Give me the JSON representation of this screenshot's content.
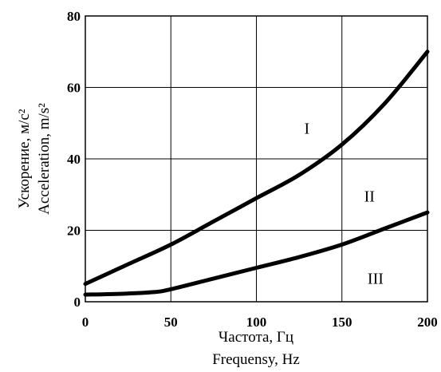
{
  "chart_data": {
    "type": "line",
    "xlabel_lines": [
      "Частота, Гц",
      "Frequensy, Hz"
    ],
    "ylabel_lines": [
      "Ускорение, м/с²",
      "Acceleration, m/s²"
    ],
    "xlim": [
      0,
      200
    ],
    "ylim": [
      0,
      80
    ],
    "x_ticks": [
      0,
      50,
      100,
      150,
      200
    ],
    "y_ticks": [
      0,
      20,
      40,
      60,
      80
    ],
    "grid": true,
    "annotations": [
      {
        "text": "I",
        "x": 128,
        "y": 47
      },
      {
        "text": "II",
        "x": 163,
        "y": 28
      },
      {
        "text": "III",
        "x": 165,
        "y": 5
      }
    ],
    "series": [
      {
        "values": [
          [
            0,
            5
          ],
          [
            25,
            10.5
          ],
          [
            50,
            16
          ],
          [
            75,
            22.5
          ],
          [
            100,
            29
          ],
          [
            125,
            35.5
          ],
          [
            150,
            44
          ],
          [
            175,
            55.5
          ],
          [
            200,
            70
          ]
        ]
      },
      {
        "values": [
          [
            0,
            2
          ],
          [
            20,
            2.2
          ],
          [
            40,
            2.7
          ],
          [
            50,
            3.5
          ],
          [
            75,
            6.5
          ],
          [
            100,
            9.5
          ],
          [
            125,
            12.5
          ],
          [
            150,
            16
          ],
          [
            175,
            20.5
          ],
          [
            200,
            25
          ]
        ]
      }
    ]
  }
}
